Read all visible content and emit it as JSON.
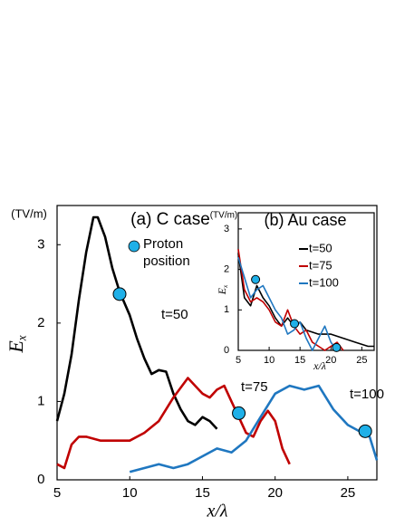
{
  "chart_data": [
    {
      "type": "line",
      "title": "(a) C case",
      "units": "(TV/m)",
      "y_label": "Ex",
      "x_label": "x/λ",
      "xlim": [
        5,
        27
      ],
      "ylim": [
        0,
        3.5
      ],
      "xticks": [
        5,
        10,
        15,
        20,
        25
      ],
      "yticks": [
        0,
        1,
        2,
        3
      ],
      "series": [
        {
          "name": "t=50",
          "color": "#000000",
          "x": [
            5,
            5.5,
            6,
            6.5,
            7,
            7.5,
            7.8,
            8.3,
            8.8,
            9.3,
            10,
            10.5,
            11,
            11.5,
            12,
            12.5,
            13,
            13.5,
            14,
            14.5,
            15,
            15.5,
            16
          ],
          "values": [
            0.75,
            1.1,
            1.6,
            2.3,
            2.9,
            3.35,
            3.35,
            3.1,
            2.7,
            2.4,
            2.1,
            1.8,
            1.55,
            1.35,
            1.4,
            1.38,
            1.1,
            0.9,
            0.75,
            0.7,
            0.8,
            0.75,
            0.65
          ]
        },
        {
          "name": "t=75",
          "color": "#c00000",
          "x": [
            5,
            5.5,
            6,
            6.5,
            7,
            8,
            9,
            10,
            11,
            12,
            13,
            14,
            14.5,
            15,
            15.5,
            16,
            16.5,
            17,
            17.5,
            18,
            18.5,
            19,
            19.5,
            20,
            20.5,
            21
          ],
          "values": [
            0.2,
            0.15,
            0.45,
            0.55,
            0.55,
            0.5,
            0.5,
            0.5,
            0.6,
            0.75,
            1.05,
            1.3,
            1.2,
            1.1,
            1.05,
            1.15,
            1.2,
            1.0,
            0.8,
            0.6,
            0.55,
            0.75,
            0.88,
            0.75,
            0.4,
            0.2
          ]
        },
        {
          "name": "t=100",
          "color": "#1f77c0",
          "x": [
            10,
            11,
            12,
            13,
            14,
            15,
            16,
            17,
            18,
            19,
            20,
            21,
            22,
            23,
            24,
            25,
            26,
            26.5,
            27
          ],
          "values": [
            0.1,
            0.15,
            0.2,
            0.15,
            0.2,
            0.3,
            0.4,
            0.35,
            0.5,
            0.8,
            1.1,
            1.2,
            1.15,
            1.2,
            0.9,
            0.7,
            0.6,
            0.55,
            0.25
          ]
        }
      ],
      "proton": {
        "name": "Proton position",
        "color": "#1fb0e8",
        "x": [
          9.3,
          17.5,
          26.2
        ],
        "values": [
          2.37,
          0.85,
          0.62
        ]
      }
    },
    {
      "type": "line",
      "title": "(b) Au case",
      "units": "(TV/m)",
      "y_label": "Ex",
      "x_label": "x/λ",
      "xlim": [
        5,
        27
      ],
      "ylim": [
        0,
        3.4
      ],
      "xticks": [
        5,
        10,
        15,
        20,
        25
      ],
      "yticks": [
        0,
        1,
        2,
        3
      ],
      "series": [
        {
          "name": "t=50",
          "color": "#000000",
          "x": [
            5,
            6,
            7,
            8,
            9,
            10,
            11,
            12,
            13,
            14,
            15,
            16,
            18,
            20,
            22,
            24,
            26,
            27
          ],
          "values": [
            2.4,
            1.3,
            1.1,
            1.6,
            1.3,
            1.1,
            0.8,
            0.6,
            0.8,
            0.6,
            0.7,
            0.5,
            0.4,
            0.4,
            0.3,
            0.2,
            0.1,
            0.1
          ]
        },
        {
          "name": "t=75",
          "color": "#c00000",
          "x": [
            5,
            6,
            7,
            8,
            9,
            10,
            11,
            12,
            13,
            14,
            15,
            16,
            17,
            18,
            19,
            21,
            22
          ],
          "values": [
            2.5,
            1.5,
            1.2,
            1.3,
            1.2,
            1.0,
            0.7,
            0.6,
            1.0,
            0.6,
            0.4,
            0.5,
            0.2,
            0.1,
            0,
            0.2,
            0
          ]
        },
        {
          "name": "t=100",
          "color": "#1f77c0",
          "x": [
            5,
            6,
            7,
            8,
            9,
            10,
            11,
            12,
            13,
            14,
            15,
            16,
            17,
            18,
            19,
            20,
            21
          ],
          "values": [
            2.3,
            1.8,
            1.3,
            1.5,
            1.6,
            1.3,
            1.0,
            0.8,
            0.4,
            0.5,
            0.7,
            0.3,
            0,
            0.3,
            0.6,
            0.2,
            0
          ]
        }
      ],
      "proton": {
        "color": "#1fb0e8",
        "x": [
          7.8,
          14.1,
          20.9
        ],
        "values": [
          1.75,
          0.66,
          0.07
        ]
      }
    }
  ]
}
